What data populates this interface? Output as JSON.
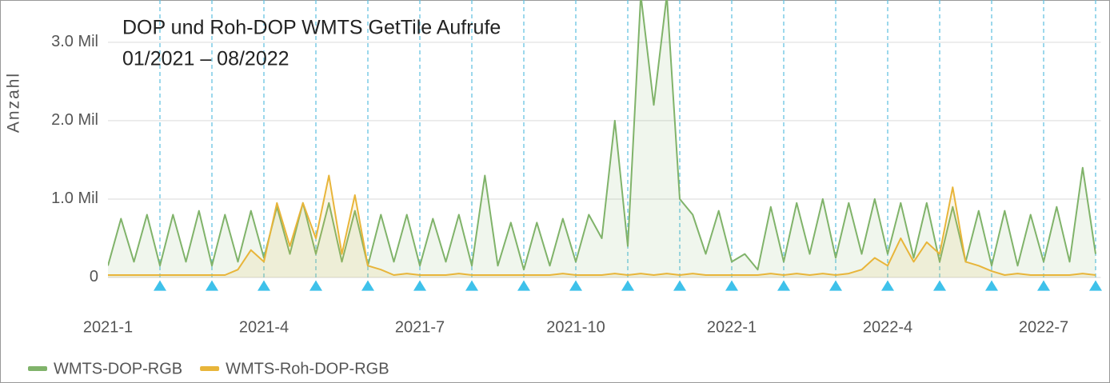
{
  "chart_data": {
    "type": "line",
    "title": "DOP und Roh-DOP WMTS GetTile Aufrufe",
    "subtitle": "01/2021 – 08/2022",
    "y_label": "Anzahl",
    "x": [
      0,
      0.25,
      0.5,
      0.75,
      1,
      1.25,
      1.5,
      1.75,
      2,
      2.25,
      2.5,
      2.75,
      3,
      3.25,
      3.5,
      3.75,
      4,
      4.25,
      4.5,
      4.75,
      5,
      5.25,
      5.5,
      5.75,
      6,
      6.25,
      6.5,
      6.75,
      7,
      7.25,
      7.5,
      7.75,
      8,
      8.25,
      8.5,
      8.75,
      9,
      9.25,
      9.5,
      9.75,
      10,
      10.25,
      10.5,
      10.75,
      11,
      11.25,
      11.5,
      11.75,
      12,
      12.25,
      12.5,
      12.75,
      13,
      13.25,
      13.5,
      13.75,
      14,
      14.25,
      14.5,
      14.75,
      15,
      15.25,
      15.5,
      15.75,
      16,
      16.25,
      16.5,
      16.75,
      17,
      17.25,
      17.5,
      17.75,
      18,
      18.25,
      18.5,
      18.75,
      19
    ],
    "series": [
      {
        "name": "WMTS-DOP-RGB",
        "color": "#80b36a",
        "values": [
          0.15,
          0.75,
          0.2,
          0.8,
          0.15,
          0.8,
          0.2,
          0.85,
          0.15,
          0.8,
          0.2,
          0.85,
          0.25,
          0.9,
          0.3,
          0.95,
          0.3,
          0.95,
          0.2,
          0.85,
          0.15,
          0.8,
          0.2,
          0.8,
          0.15,
          0.75,
          0.2,
          0.8,
          0.15,
          1.3,
          0.15,
          0.7,
          0.1,
          0.7,
          0.15,
          0.75,
          0.2,
          0.8,
          0.5,
          2.0,
          0.4,
          3.6,
          2.2,
          3.6,
          1.0,
          0.8,
          0.3,
          0.85,
          0.2,
          0.3,
          0.1,
          0.9,
          0.2,
          0.95,
          0.3,
          1.0,
          0.25,
          0.95,
          0.3,
          1.0,
          0.3,
          0.95,
          0.25,
          0.95,
          0.2,
          0.9,
          0.2,
          0.85,
          0.15,
          0.85,
          0.15,
          0.8,
          0.2,
          0.9,
          0.2,
          1.4,
          0.3
        ]
      },
      {
        "name": "WMTS-Roh-DOP-RGB",
        "color": "#e8b53a",
        "values": [
          0.03,
          0.03,
          0.03,
          0.03,
          0.03,
          0.03,
          0.03,
          0.03,
          0.03,
          0.03,
          0.1,
          0.35,
          0.2,
          0.95,
          0.4,
          0.95,
          0.5,
          1.3,
          0.3,
          1.05,
          0.15,
          0.1,
          0.03,
          0.05,
          0.03,
          0.03,
          0.03,
          0.05,
          0.03,
          0.03,
          0.03,
          0.03,
          0.03,
          0.03,
          0.03,
          0.05,
          0.03,
          0.03,
          0.03,
          0.05,
          0.03,
          0.05,
          0.03,
          0.05,
          0.03,
          0.05,
          0.03,
          0.03,
          0.03,
          0.03,
          0.03,
          0.05,
          0.03,
          0.05,
          0.03,
          0.05,
          0.03,
          0.05,
          0.1,
          0.25,
          0.15,
          0.5,
          0.2,
          0.45,
          0.3,
          1.15,
          0.2,
          0.15,
          0.08,
          0.03,
          0.05,
          0.03,
          0.03,
          0.03,
          0.03,
          0.05,
          0.03
        ]
      }
    ],
    "xlim": [
      0,
      19.1
    ],
    "xticks": [
      {
        "value": 0,
        "label": "2021-1"
      },
      {
        "value": 3,
        "label": "2021-4"
      },
      {
        "value": 6,
        "label": "2021-7"
      },
      {
        "value": 9,
        "label": "2021-10"
      },
      {
        "value": 12,
        "label": "2022-1"
      },
      {
        "value": 15,
        "label": "2022-4"
      },
      {
        "value": 18,
        "label": "2022-7"
      }
    ],
    "xminorticks": [
      1,
      2,
      3,
      4,
      5,
      6,
      7,
      8,
      9,
      10,
      11,
      12,
      13,
      14,
      15,
      16,
      17,
      18,
      19
    ],
    "ylim": [
      -0.18,
      3.54
    ],
    "yticks": [
      0,
      {
        "value": 1,
        "label": "1.0 Mil"
      },
      {
        "value": 2,
        "label": "2.0 Mil"
      },
      {
        "value": 3,
        "label": "3.0 Mil"
      }
    ],
    "grid": true,
    "legend": "bottom"
  }
}
